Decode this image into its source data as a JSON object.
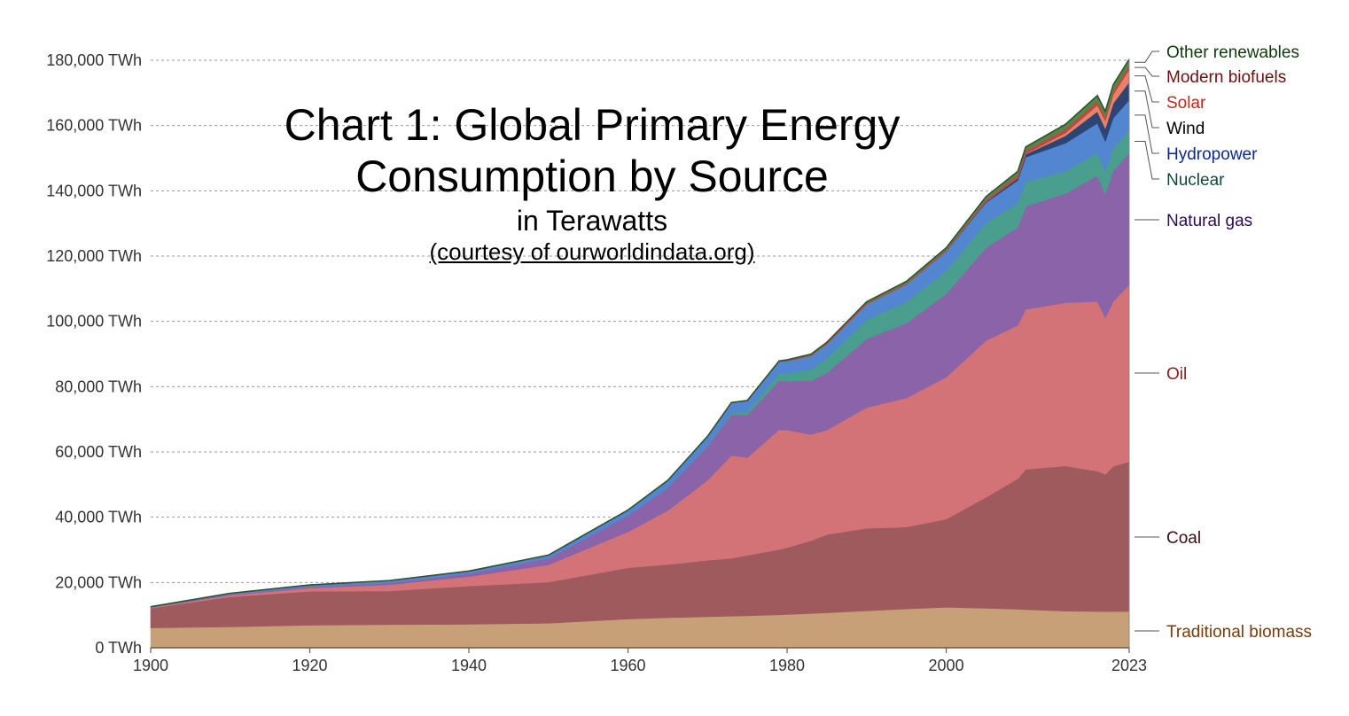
{
  "chart_data": {
    "type": "area",
    "title": "Chart 1: Global Primary Energy Consumption by Source",
    "subtitle": "in Terawatts",
    "credit": "(courtesy of ourworldindata.org)",
    "xlabel": "",
    "ylabel": "",
    "xlim": [
      1900,
      2023
    ],
    "ylim": [
      0,
      180000
    ],
    "y_ticks": [
      0,
      20000,
      40000,
      60000,
      80000,
      100000,
      120000,
      140000,
      160000,
      180000
    ],
    "y_tick_labels": [
      "0 TWh",
      "20,000 TWh",
      "40,000 TWh",
      "60,000 TWh",
      "80,000 TWh",
      "100,000 TWh",
      "120,000 TWh",
      "140,000 TWh",
      "160,000 TWh",
      "180,000 TWh"
    ],
    "x_ticks": [
      1900,
      1920,
      1940,
      1960,
      1980,
      2000,
      2023
    ],
    "x_tick_labels": [
      "1900",
      "1920",
      "1940",
      "1960",
      "1980",
      "2000",
      "2023"
    ],
    "grid": "horizontal dotted",
    "legend": "right, labels aligned to series end",
    "x": [
      1900,
      1910,
      1920,
      1930,
      1940,
      1950,
      1960,
      1965,
      1970,
      1973,
      1975,
      1979,
      1980,
      1983,
      1985,
      1990,
      1995,
      2000,
      2005,
      2009,
      2010,
      2015,
      2019,
      2020,
      2021,
      2023
    ],
    "series": [
      {
        "name": "Traditional biomass",
        "color": "#c8a078",
        "label_color": "#7a3a0a",
        "values": [
          6100,
          6400,
          6900,
          7100,
          7200,
          7500,
          8800,
          9200,
          9500,
          9700,
          9800,
          10100,
          10200,
          10500,
          10700,
          11300,
          11900,
          12400,
          12100,
          11800,
          11700,
          11200,
          11100,
          11100,
          11100,
          11100
        ]
      },
      {
        "name": "Coal",
        "color": "#9f5a5e",
        "label_color": "#3d0a10",
        "values": [
          6000,
          9200,
          10400,
          10300,
          11700,
          12600,
          15700,
          16300,
          17300,
          17700,
          18500,
          20000,
          20500,
          22300,
          24000,
          25300,
          25100,
          27000,
          34000,
          40000,
          43000,
          44500,
          43000,
          42000,
          44500,
          45900
        ]
      },
      {
        "name": "Oil",
        "color": "#d37378",
        "label_color": "#8b1a1f",
        "values": [
          200,
          500,
          1000,
          1900,
          2900,
          5300,
          11000,
          16500,
          24500,
          31500,
          30000,
          36700,
          36000,
          32500,
          32000,
          37000,
          39500,
          43500,
          48000,
          47000,
          49000,
          50000,
          52000,
          48000,
          50500,
          54200
        ]
      },
      {
        "name": "Natural gas",
        "color": "#8a63a8",
        "label_color": "#2b0b55",
        "values": [
          80,
          250,
          400,
          600,
          900,
          2000,
          5000,
          7000,
          10500,
          12500,
          13000,
          15000,
          15000,
          16500,
          17500,
          21000,
          23000,
          25500,
          28500,
          30000,
          31500,
          33500,
          38500,
          38000,
          40000,
          40500
        ]
      },
      {
        "name": "Nuclear",
        "color": "#4a9e8e",
        "label_color": "#0e4a3a",
        "values": [
          0,
          0,
          0,
          0,
          0,
          0,
          5,
          50,
          200,
          600,
          1100,
          2200,
          2300,
          3500,
          4500,
          5900,
          6500,
          7100,
          7500,
          7400,
          7500,
          6800,
          7100,
          6800,
          7000,
          6900
        ]
      },
      {
        "name": "Hydropower",
        "color": "#5386d0",
        "label_color": "#0a2a8a",
        "values": [
          200,
          350,
          550,
          700,
          800,
          1000,
          1700,
          2200,
          2700,
          3000,
          3200,
          3700,
          3800,
          4100,
          4300,
          4700,
          5300,
          5900,
          6300,
          7000,
          7600,
          8600,
          9000,
          9200,
          9200,
          9200
        ]
      },
      {
        "name": "Wind",
        "color": "#2e4574",
        "label_color": "#000000",
        "values": [
          0,
          0,
          0,
          0,
          0,
          0,
          0,
          0,
          0,
          0,
          0,
          0,
          0,
          0,
          0,
          10,
          20,
          80,
          300,
          700,
          900,
          2300,
          3600,
          4000,
          4500,
          5500
        ]
      },
      {
        "name": "Solar",
        "color": "#e8806a",
        "label_color": "#c0281c",
        "values": [
          0,
          0,
          0,
          0,
          0,
          0,
          0,
          0,
          0,
          0,
          0,
          0,
          0,
          0,
          0,
          0,
          0,
          5,
          10,
          60,
          100,
          800,
          1900,
          2300,
          2700,
          3800
        ]
      },
      {
        "name": "Modern biofuels",
        "color": "#b54e40",
        "label_color": "#6a1010",
        "values": [
          0,
          0,
          0,
          0,
          0,
          0,
          0,
          0,
          0,
          0,
          0,
          0,
          200,
          300,
          300,
          400,
          450,
          450,
          700,
          1000,
          1100,
          1300,
          1400,
          1300,
          1350,
          1400
        ]
      },
      {
        "name": "Other renewables",
        "color": "#4f8a4a",
        "label_color": "#0d3a0a",
        "values": [
          0,
          0,
          0,
          0,
          0,
          0,
          0,
          50,
          100,
          150,
          180,
          200,
          220,
          250,
          300,
          400,
          500,
          600,
          800,
          1000,
          1050,
          1400,
          1600,
          1650,
          1700,
          1800
        ]
      }
    ]
  }
}
